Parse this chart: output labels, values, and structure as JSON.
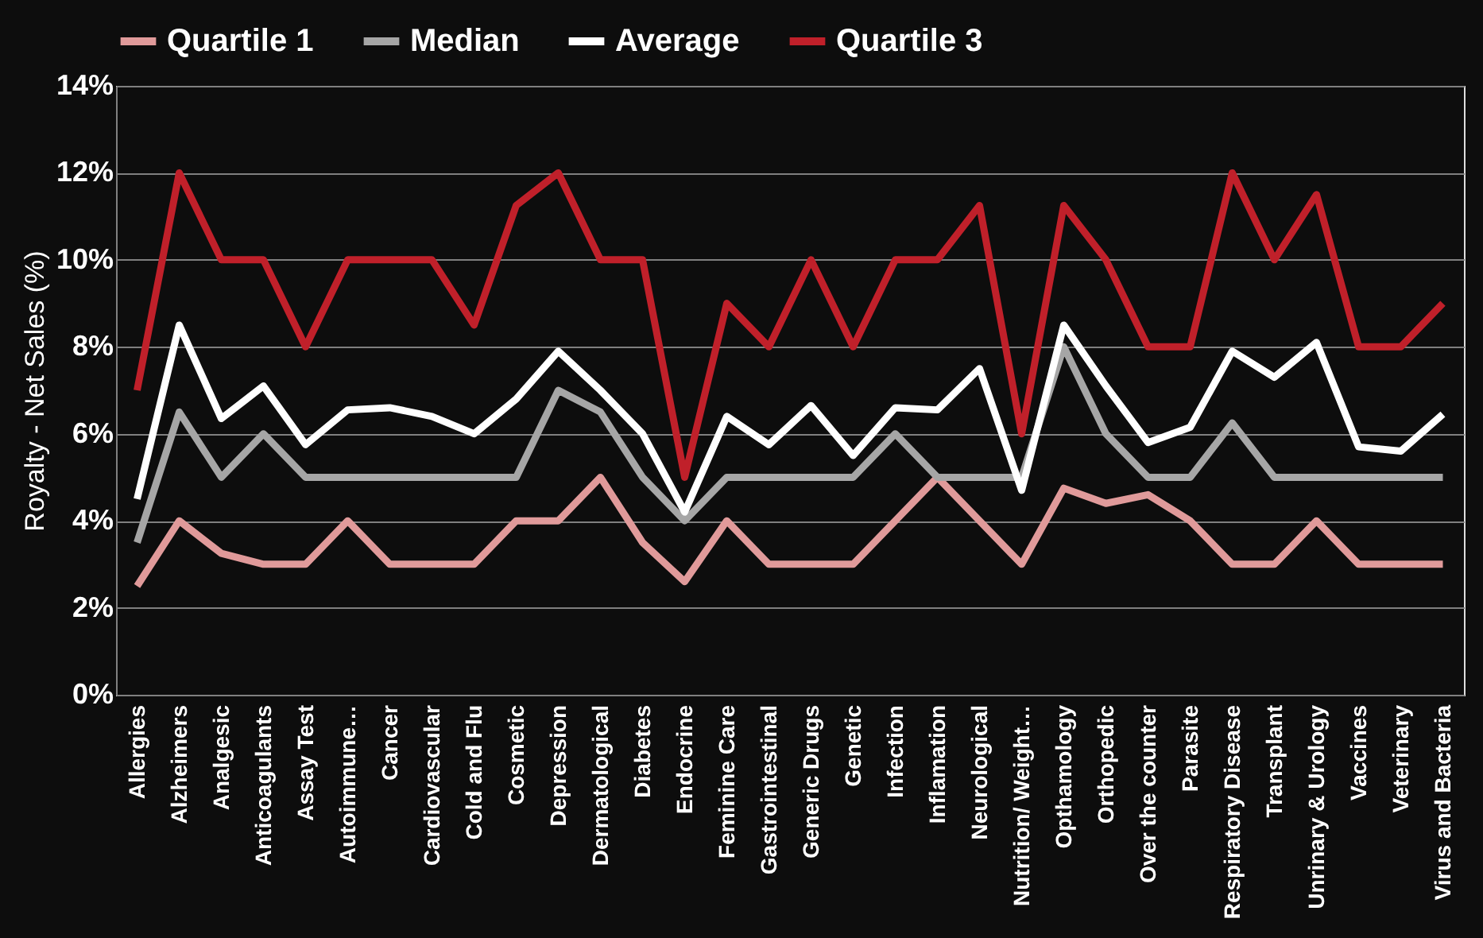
{
  "chart_data": {
    "type": "line",
    "ylabel": "Royalty - Net Sales (%)",
    "categories": [
      "Allergies",
      "Alzheimers",
      "Analgesic",
      "Anticoagulants",
      "Assay Test",
      "Autoimmune…",
      "Cancer",
      "Cardiovascular",
      "Cold and Flu",
      "Cosmetic",
      "Depression",
      "Dermatological",
      "Diabetes",
      "Endocrine",
      "Feminine Care",
      "Gastrointestinal",
      "Generic Drugs",
      "Genetic",
      "Infection",
      "Inflamation",
      "Neurological",
      "Nutrition/ Weight…",
      "Opthamology",
      "Orthopedic",
      "Over the counter",
      "Parasite",
      "Respiratory Disease",
      "Transplant",
      "Unrinary & Urology",
      "Vaccines",
      "Veterinary",
      "Virus and Bacteria"
    ],
    "series": [
      {
        "name": "Quartile 1",
        "color": "#e09a9a",
        "values": [
          2.5,
          4,
          3.25,
          3,
          3,
          4,
          3,
          3,
          3,
          4,
          4,
          5,
          3.5,
          2.6,
          4,
          3,
          3,
          3,
          4,
          5,
          4,
          3,
          4.75,
          4.4,
          4.6,
          4,
          3,
          3,
          4,
          3,
          3,
          3
        ]
      },
      {
        "name": "Median",
        "color": "#a6a6a6",
        "values": [
          3.5,
          6.5,
          5,
          6,
          5,
          5,
          5,
          5,
          5,
          5,
          7,
          6.5,
          5,
          4,
          5,
          5,
          5,
          5,
          6,
          5,
          5,
          5,
          8,
          6,
          5,
          5,
          6.25,
          5,
          5,
          5,
          5,
          5
        ]
      },
      {
        "name": "Average",
        "color": "#ffffff",
        "values": [
          4.5,
          8.5,
          6.35,
          7.1,
          5.75,
          6.55,
          6.6,
          6.4,
          6,
          6.8,
          7.9,
          7,
          6,
          4.2,
          6.4,
          5.75,
          6.65,
          5.5,
          6.6,
          6.55,
          7.5,
          4.7,
          8.5,
          7.1,
          5.8,
          6.15,
          7.9,
          7.3,
          8.1,
          5.7,
          5.6,
          6.45
        ]
      },
      {
        "name": "Quartile 3",
        "color": "#c0202a",
        "values": [
          7,
          12,
          10,
          10,
          8,
          10,
          10,
          10,
          8.5,
          11.25,
          12,
          10,
          10,
          5,
          9,
          8,
          10,
          8,
          10,
          10,
          11.25,
          6,
          11.25,
          10,
          8,
          8,
          12,
          10,
          11.5,
          8,
          8,
          9
        ]
      }
    ],
    "ylim": [
      0,
      14
    ],
    "yticks": [
      {
        "value": 0,
        "label": "0%"
      },
      {
        "value": 2,
        "label": "2%"
      },
      {
        "value": 4,
        "label": "4%"
      },
      {
        "value": 6,
        "label": "6%"
      },
      {
        "value": 8,
        "label": "8%"
      },
      {
        "value": 10,
        "label": "10%"
      },
      {
        "value": 12,
        "label": "12%"
      },
      {
        "value": 14,
        "label": "14%"
      }
    ],
    "grid": "y",
    "legend": "top",
    "marker": "none",
    "line_style": "solid"
  }
}
